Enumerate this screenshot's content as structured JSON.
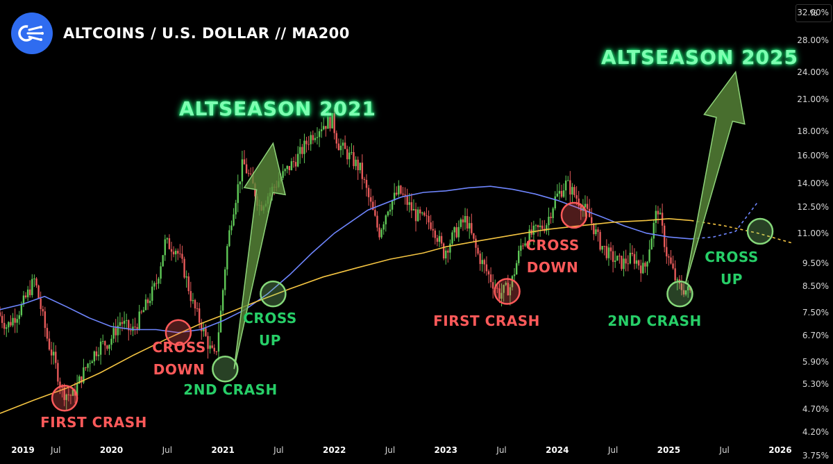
{
  "header": {
    "title": "ALTCOINS / U.S. DOLLAR // MA200",
    "logo_icon": "signal-rays-icon"
  },
  "axis": {
    "unit": "%",
    "y_ticks": [
      "32.00%",
      "28.00%",
      "24.00%",
      "21.00%",
      "18.00%",
      "16.00%",
      "14.00%",
      "12.50%",
      "11.00%",
      "9.50%",
      "8.50%",
      "7.50%",
      "6.70%",
      "5.90%",
      "5.30%",
      "4.70%",
      "4.20%",
      "3.75%"
    ],
    "x_ticks": [
      {
        "label": "2019",
        "major": true
      },
      {
        "label": "Jul",
        "major": false
      },
      {
        "label": "2020",
        "major": true
      },
      {
        "label": "Jul",
        "major": false
      },
      {
        "label": "2021",
        "major": true
      },
      {
        "label": "Jul",
        "major": false
      },
      {
        "label": "2022",
        "major": true
      },
      {
        "label": "Jul",
        "major": false
      },
      {
        "label": "2023",
        "major": true
      },
      {
        "label": "Jul",
        "major": false
      },
      {
        "label": "2024",
        "major": true
      },
      {
        "label": "Jul",
        "major": false
      },
      {
        "label": "2025",
        "major": true
      },
      {
        "label": "Jul",
        "major": false
      },
      {
        "label": "2026",
        "major": true
      }
    ]
  },
  "annotations": {
    "first_crash_2019": "FIRST CRASH",
    "cross_down_2020": [
      "CROSS",
      "DOWN"
    ],
    "second_crash_2020": "2ND CRASH",
    "cross_up_2021": [
      "CROSS",
      "UP"
    ],
    "altseason_2021": "ALTSEASON 2021",
    "first_crash_2023": "FIRST CRASH",
    "cross_down_2024": [
      "CROSS",
      "DOWN"
    ],
    "second_crash_2025": "2ND CRASH",
    "cross_up_2025": [
      "CROSS",
      "UP"
    ],
    "altseason_2025": "ALTSEASON 2025"
  },
  "colors": {
    "background": "#000000",
    "candle_up": "#5fc957",
    "candle_down": "#e85a5a",
    "ma_short": "#6f86ff",
    "ma_long": "#f5c542",
    "red_circle": "#ff5a5a",
    "green_circle": "#86d87a",
    "arrow_fill": "#5a8a3a"
  },
  "chart_data": {
    "type": "line",
    "title": "ALTCOINS / U.S. DOLLAR // MA200",
    "y_scale": "log",
    "ylim": [
      3.6,
      34
    ],
    "xlim": [
      2019.0,
      2026.1
    ],
    "price_path": {
      "x": [
        2019.0,
        2019.08,
        2019.2,
        2019.33,
        2019.45,
        2019.5,
        2019.58,
        2019.67,
        2019.75,
        2019.83,
        2019.92,
        2020.0,
        2020.1,
        2020.2,
        2020.3,
        2020.42,
        2020.5,
        2020.6,
        2020.67,
        2020.75,
        2020.83,
        2020.9,
        2020.95,
        2021.0,
        2021.05,
        2021.1,
        2021.2,
        2021.28,
        2021.35,
        2021.4,
        2021.5,
        2021.6,
        2021.7,
        2021.8,
        2021.9,
        2022.0,
        2022.05,
        2022.15,
        2022.25,
        2022.35,
        2022.42,
        2022.5,
        2022.6,
        2022.75,
        2022.9,
        2023.0,
        2023.1,
        2023.2,
        2023.3,
        2023.4,
        2023.5,
        2023.6,
        2023.7,
        2023.8,
        2023.92,
        2024.0,
        2024.1,
        2024.2,
        2024.3,
        2024.4,
        2024.5,
        2024.6,
        2024.7,
        2024.8,
        2024.92,
        2025.0,
        2025.1,
        2025.2
      ],
      "y": [
        7.5,
        7.0,
        7.6,
        8.8,
        6.5,
        6.0,
        5.1,
        5.0,
        5.5,
        6.0,
        6.4,
        6.5,
        7.2,
        6.8,
        7.5,
        8.6,
        10.5,
        10.2,
        9.2,
        7.8,
        7.0,
        6.3,
        6.0,
        7.5,
        10.0,
        12.0,
        15.5,
        14.0,
        12.5,
        13.0,
        14.0,
        15.0,
        16.0,
        17.5,
        18.5,
        19.0,
        17.0,
        16.0,
        15.0,
        12.5,
        11.0,
        12.5,
        13.5,
        12.0,
        11.5,
        10.0,
        11.0,
        11.8,
        10.0,
        9.0,
        8.2,
        8.5,
        10.5,
        11.0,
        11.5,
        13.0,
        14.0,
        13.0,
        12.0,
        10.5,
        9.8,
        9.5,
        9.8,
        9.2,
        12.5,
        10.0,
        8.5,
        8.3
      ]
    },
    "series": [
      {
        "x": [
          2019.0,
          2019.2,
          2019.4,
          2019.6,
          2019.8,
          2020.0,
          2020.2,
          2020.4,
          2020.6,
          2020.8,
          2021.0,
          2021.2,
          2021.4,
          2021.6,
          2021.8,
          2022.0,
          2022.3,
          2022.6,
          2022.8,
          2023.0,
          2023.2,
          2023.4,
          2023.6,
          2023.8,
          2024.0,
          2024.2,
          2024.4,
          2024.6,
          2024.8,
          2025.0,
          2025.2
        ],
        "y": [
          7.6,
          7.8,
          8.1,
          7.7,
          7.3,
          7.0,
          6.9,
          6.9,
          6.8,
          6.9,
          7.2,
          7.6,
          8.2,
          9.0,
          10.0,
          11.0,
          12.3,
          13.1,
          13.4,
          13.5,
          13.7,
          13.8,
          13.6,
          13.3,
          12.9,
          12.4,
          11.9,
          11.4,
          11.0,
          10.8,
          10.7
        ]
      },
      {
        "x": [
          2019.0,
          2019.3,
          2019.6,
          2019.9,
          2020.2,
          2020.5,
          2020.8,
          2021.0,
          2021.3,
          2021.6,
          2021.9,
          2022.2,
          2022.5,
          2022.8,
          2023.0,
          2023.3,
          2023.6,
          2023.9,
          2024.2,
          2024.5,
          2024.8,
          2025.0,
          2025.2
        ],
        "y": [
          4.6,
          4.9,
          5.2,
          5.6,
          6.1,
          6.6,
          7.1,
          7.4,
          7.9,
          8.4,
          8.9,
          9.3,
          9.7,
          10.0,
          10.3,
          10.6,
          10.9,
          11.2,
          11.4,
          11.6,
          11.7,
          11.8,
          11.7
        ]
      }
    ],
    "projections": [
      {
        "x": [
          2025.2,
          2025.4,
          2025.6,
          2025.8
        ],
        "y": [
          10.7,
          10.8,
          11.1,
          12.8
        ]
      },
      {
        "x": [
          2025.2,
          2025.5,
          2025.8,
          2026.1
        ],
        "y": [
          11.7,
          11.4,
          11.0,
          10.5
        ]
      }
    ],
    "markers": [
      {
        "x": 2019.58,
        "y": 4.95,
        "kind": "red"
      },
      {
        "x": 2020.6,
        "y": 6.8,
        "kind": "red"
      },
      {
        "x": 2021.02,
        "y": 5.7,
        "kind": "green"
      },
      {
        "x": 2021.45,
        "y": 8.2,
        "kind": "green"
      },
      {
        "x": 2023.55,
        "y": 8.3,
        "kind": "red"
      },
      {
        "x": 2024.15,
        "y": 12.0,
        "kind": "red"
      },
      {
        "x": 2025.1,
        "y": 8.2,
        "kind": "green"
      },
      {
        "x": 2025.82,
        "y": 11.1,
        "kind": "green"
      }
    ],
    "arrows": [
      {
        "from": [
          2021.1,
          5.7
        ],
        "to": [
          2021.45,
          17.0
        ]
      },
      {
        "from": [
          2025.15,
          8.6
        ],
        "to": [
          2025.6,
          24.0
        ]
      }
    ]
  }
}
